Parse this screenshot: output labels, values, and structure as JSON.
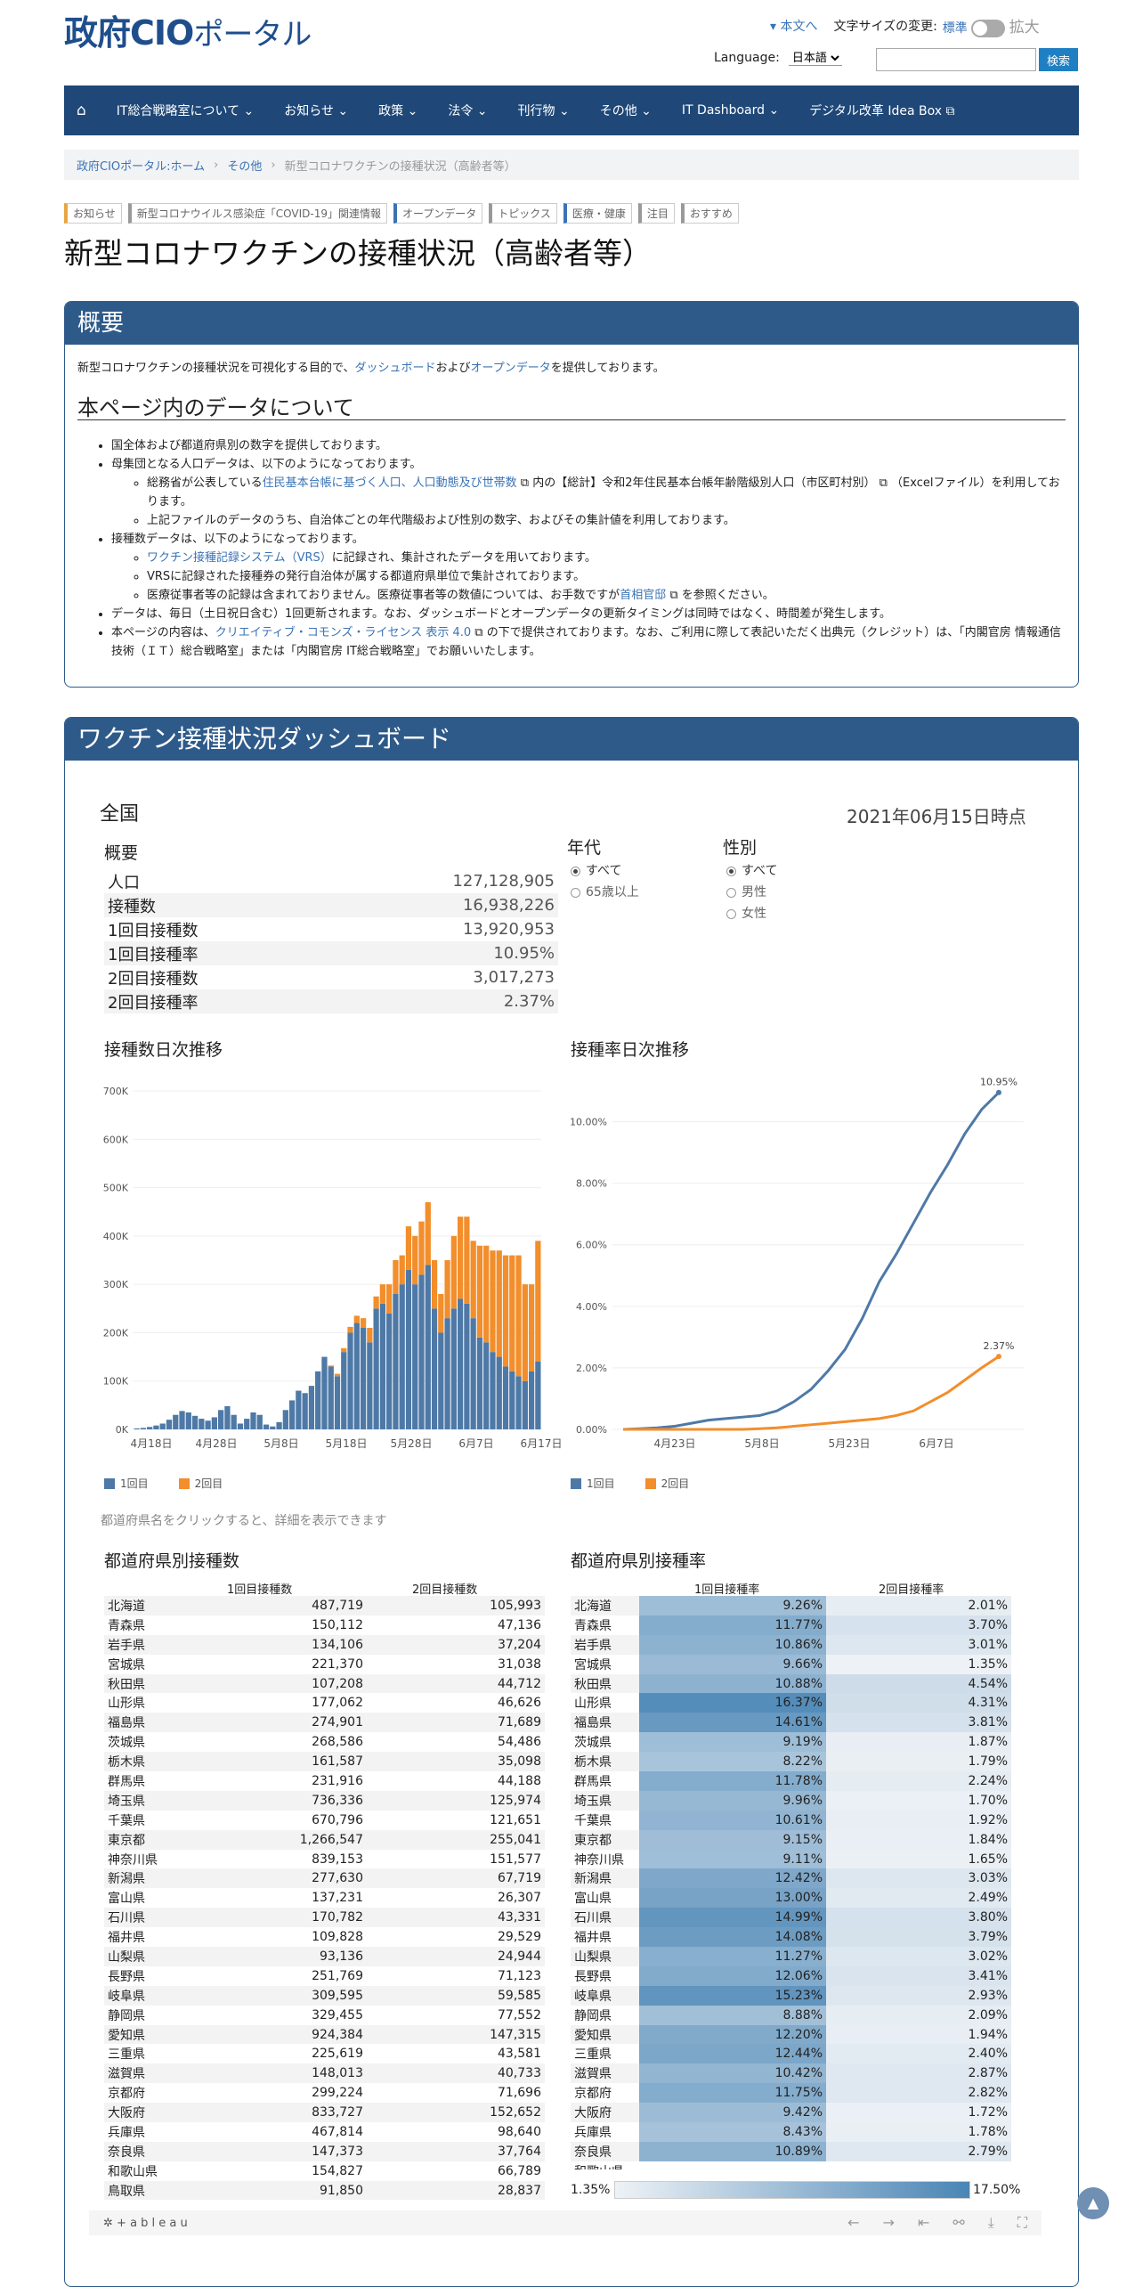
{
  "header": {
    "logo_main": "政府CIO",
    "logo_kana": "ポータル",
    "skip": "本文へ",
    "font_size_label": "文字サイズの変更:",
    "font_standard": "標準",
    "font_large": "拡大",
    "language_label": "Language:",
    "language_value": "日本語",
    "search_placeholder": "",
    "search_button": "検索"
  },
  "nav": {
    "items": [
      "IT総合戦略室について",
      "お知らせ",
      "政策",
      "法令",
      "刊行物",
      "その他",
      "IT Dashboard",
      "デジタル改革 Idea Box"
    ]
  },
  "breadcrumb": [
    "政府CIOポータル:ホーム",
    "その他",
    "新型コロナワクチンの接種状況（高齢者等）"
  ],
  "tags": [
    "お知らせ",
    "新型コロナウイルス感染症「COVID-19」関連情報",
    "オープンデータ",
    "トピックス",
    "医療・健康",
    "注目",
    "おすすめ"
  ],
  "page_title": "新型コロナワクチンの接種状況（高齢者等）",
  "overview": {
    "title": "概要",
    "text1": "新型コロナワクチンの接種状況を可視化する目的で、",
    "link1": "ダッシュボード",
    "text2": "および",
    "link2": "オープンデータ",
    "text3": "を提供しております。",
    "h2": "本ページ内のデータについて",
    "b1": "国全体および都道府県別の数字を提供しております。",
    "b2": "母集団となる人口データは、以下のようになっております。",
    "b2a1": "総務省が公表している",
    "b2alink": "住民基本台帳に基づく人口、人口動態及び世帯数",
    "b2a2": "内の【総計】令和2年住民基本台帳年齢階級別人口（市区町村別）",
    "b2a3": "（Excelファイル）を利用しております。",
    "b2b": "上記ファイルのデータのうち、自治体ごとの年代階級および性別の数字、およびその集計値を利用しております。",
    "b3": "接種数データは、以下のようになっております。",
    "b3alink": "ワクチン接種記録システム（VRS）",
    "b3a": "に記録され、集計されたデータを用いております。",
    "b3b": "VRSに記録された接種券の発行自治体が属する都道府県単位で集計されております。",
    "b3c1": "医療従事者等の記録は含まれておりません。医療従事者等の数値については、お手数ですが",
    "b3clink": "首相官邸",
    "b3c2": "を参照ください。",
    "b4": "データは、毎日（土日祝日含む）1回更新されます。なお、ダッシュボードとオープンデータの更新タイミングは同時ではなく、時間差が発生します。",
    "b5a": "本ページの内容は、",
    "b5link": "クリエイティブ・コモンズ・ライセンス 表示 4.0",
    "b5b": "の下で提供されております。なお、ご利用に際して表記いただく出典元（クレジット）は、「内閣官房 情報通信技術（ＩＴ）総合戦略室」または「内閣官房 IT総合戦略室」でお願いいたします。"
  },
  "dashboard": {
    "title": "ワクチン接種状況ダッシュボード",
    "scope": "全国",
    "as_of": "2021年06月15日時点",
    "summary_title": "概要",
    "summary": [
      [
        "人口",
        "127,128,905"
      ],
      [
        "接種数",
        "16,938,226"
      ],
      [
        "1回目接種数",
        "13,920,953"
      ],
      [
        "1回目接種率",
        "10.95%"
      ],
      [
        "2回目接種数",
        "3,017,273"
      ],
      [
        "2回目接種率",
        "2.37%"
      ]
    ],
    "age_label": "年代",
    "age_opts": [
      "すべて",
      "65歳以上"
    ],
    "sex_label": "性別",
    "sex_opts": [
      "すべて",
      "男性",
      "女性"
    ],
    "note": "都道府県名をクリックすると、詳細を表示できます",
    "pref_count_title": "都道府県別接種数",
    "pref_rate_title": "都道府県別接種率",
    "col_first": "1回目接種数",
    "col_second": "2回目接種数",
    "col_rate1": "1回目接種率",
    "col_rate2": "2回目接種率",
    "scale_min": "1.35%",
    "scale_max": "17.50%",
    "tableau": "+ a b l e a u",
    "legend1": "1回目",
    "legend2": "2回目",
    "prefs": [
      [
        "北海道",
        "487,719",
        "105,993",
        "9.26%",
        "2.01%"
      ],
      [
        "青森県",
        "150,112",
        "47,136",
        "11.77%",
        "3.70%"
      ],
      [
        "岩手県",
        "134,106",
        "37,204",
        "10.86%",
        "3.01%"
      ],
      [
        "宮城県",
        "221,370",
        "31,038",
        "9.66%",
        "1.35%"
      ],
      [
        "秋田県",
        "107,208",
        "44,712",
        "10.88%",
        "4.54%"
      ],
      [
        "山形県",
        "177,062",
        "46,626",
        "16.37%",
        "4.31%"
      ],
      [
        "福島県",
        "274,901",
        "71,689",
        "14.61%",
        "3.81%"
      ],
      [
        "茨城県",
        "268,586",
        "54,486",
        "9.19%",
        "1.87%"
      ],
      [
        "栃木県",
        "161,587",
        "35,098",
        "8.22%",
        "1.79%"
      ],
      [
        "群馬県",
        "231,916",
        "44,188",
        "11.78%",
        "2.24%"
      ],
      [
        "埼玉県",
        "736,336",
        "125,974",
        "9.96%",
        "1.70%"
      ],
      [
        "千葉県",
        "670,796",
        "121,651",
        "10.61%",
        "1.92%"
      ],
      [
        "東京都",
        "1,266,547",
        "255,041",
        "9.15%",
        "1.84%"
      ],
      [
        "神奈川県",
        "839,153",
        "151,577",
        "9.11%",
        "1.65%"
      ],
      [
        "新潟県",
        "277,630",
        "67,719",
        "12.42%",
        "3.03%"
      ],
      [
        "富山県",
        "137,231",
        "26,307",
        "13.00%",
        "2.49%"
      ],
      [
        "石川県",
        "170,782",
        "43,331",
        "14.99%",
        "3.80%"
      ],
      [
        "福井県",
        "109,828",
        "29,529",
        "14.08%",
        "3.79%"
      ],
      [
        "山梨県",
        "93,136",
        "24,944",
        "11.27%",
        "3.02%"
      ],
      [
        "長野県",
        "251,769",
        "71,123",
        "12.06%",
        "3.41%"
      ],
      [
        "岐阜県",
        "309,595",
        "59,585",
        "15.23%",
        "2.93%"
      ],
      [
        "静岡県",
        "329,455",
        "77,552",
        "8.88%",
        "2.09%"
      ],
      [
        "愛知県",
        "924,384",
        "147,315",
        "12.20%",
        "1.94%"
      ],
      [
        "三重県",
        "225,619",
        "43,581",
        "12.44%",
        "2.40%"
      ],
      [
        "滋賀県",
        "148,013",
        "40,733",
        "10.42%",
        "2.87%"
      ],
      [
        "京都府",
        "299,224",
        "71,696",
        "11.75%",
        "2.82%"
      ],
      [
        "大阪府",
        "833,727",
        "152,652",
        "9.42%",
        "1.72%"
      ],
      [
        "兵庫県",
        "467,814",
        "98,640",
        "8.43%",
        "1.78%"
      ],
      [
        "奈良県",
        "147,373",
        "37,764",
        "10.89%",
        "2.79%"
      ],
      [
        "和歌山県",
        "154,827",
        "66,789",
        "",
        ""
      ],
      [
        "鳥取県",
        "91,850",
        "28,837",
        "",
        ""
      ]
    ]
  },
  "chart_data": [
    {
      "type": "bar",
      "title": "接種数日次推移",
      "stacked": true,
      "xlabel": "",
      "ylabel": "",
      "ylim": [
        0,
        700000
      ],
      "yticks": [
        "0K",
        "100K",
        "200K",
        "300K",
        "400K",
        "500K",
        "600K",
        "700K"
      ],
      "xticks": [
        "4月18日",
        "4月28日",
        "5月8日",
        "5月18日",
        "5月28日",
        "6月7日",
        "6月17日"
      ],
      "series": [
        {
          "name": "1回目",
          "color": "#4e79a7",
          "values": [
            2000,
            3000,
            5000,
            8000,
            12000,
            20000,
            30000,
            38000,
            35000,
            28000,
            22000,
            18000,
            25000,
            40000,
            48000,
            30000,
            12000,
            22000,
            35000,
            30000,
            10000,
            6000,
            15000,
            40000,
            60000,
            80000,
            75000,
            90000,
            120000,
            150000,
            130000,
            110000,
            160000,
            200000,
            220000,
            210000,
            180000,
            250000,
            260000,
            240000,
            280000,
            300000,
            330000,
            300000,
            320000,
            340000,
            250000,
            200000,
            230000,
            250000,
            270000,
            260000,
            230000,
            190000,
            180000,
            160000,
            150000,
            130000,
            120000,
            110000,
            100000,
            120000,
            140000
          ]
        },
        {
          "name": "2回目",
          "color": "#f28e2b",
          "values": [
            0,
            0,
            0,
            0,
            0,
            0,
            0,
            0,
            0,
            0,
            0,
            0,
            0,
            0,
            0,
            0,
            0,
            0,
            0,
            0,
            0,
            0,
            0,
            0,
            0,
            0,
            0,
            0,
            0,
            0,
            2000,
            5000,
            8000,
            12000,
            15000,
            20000,
            30000,
            25000,
            40000,
            60000,
            70000,
            60000,
            90000,
            100000,
            110000,
            130000,
            100000,
            80000,
            120000,
            150000,
            170000,
            180000,
            160000,
            190000,
            200000,
            210000,
            220000,
            230000,
            240000,
            250000,
            200000,
            180000,
            250000
          ]
        }
      ]
    },
    {
      "type": "line",
      "title": "接種率日次推移",
      "xlabel": "",
      "ylabel": "",
      "ylim": [
        0,
        11
      ],
      "yticks": [
        "0.00%",
        "2.00%",
        "4.00%",
        "6.00%",
        "8.00%",
        "10.00%"
      ],
      "xticks": [
        "4月23日",
        "5月8日",
        "5月23日",
        "6月7日"
      ],
      "series": [
        {
          "name": "1回目",
          "color": "#4e79a7",
          "end_label": "10.95%",
          "values": [
            0,
            0.02,
            0.05,
            0.1,
            0.2,
            0.3,
            0.35,
            0.4,
            0.45,
            0.6,
            0.9,
            1.3,
            1.9,
            2.6,
            3.6,
            4.8,
            5.7,
            6.7,
            7.7,
            8.6,
            9.6,
            10.4,
            10.95
          ]
        },
        {
          "name": "2回目",
          "color": "#f28e2b",
          "end_label": "2.37%",
          "values": [
            0,
            0,
            0,
            0,
            0,
            0,
            0,
            0,
            0.02,
            0.05,
            0.1,
            0.15,
            0.2,
            0.25,
            0.3,
            0.35,
            0.45,
            0.6,
            0.9,
            1.2,
            1.6,
            2.0,
            2.37
          ]
        }
      ]
    }
  ]
}
